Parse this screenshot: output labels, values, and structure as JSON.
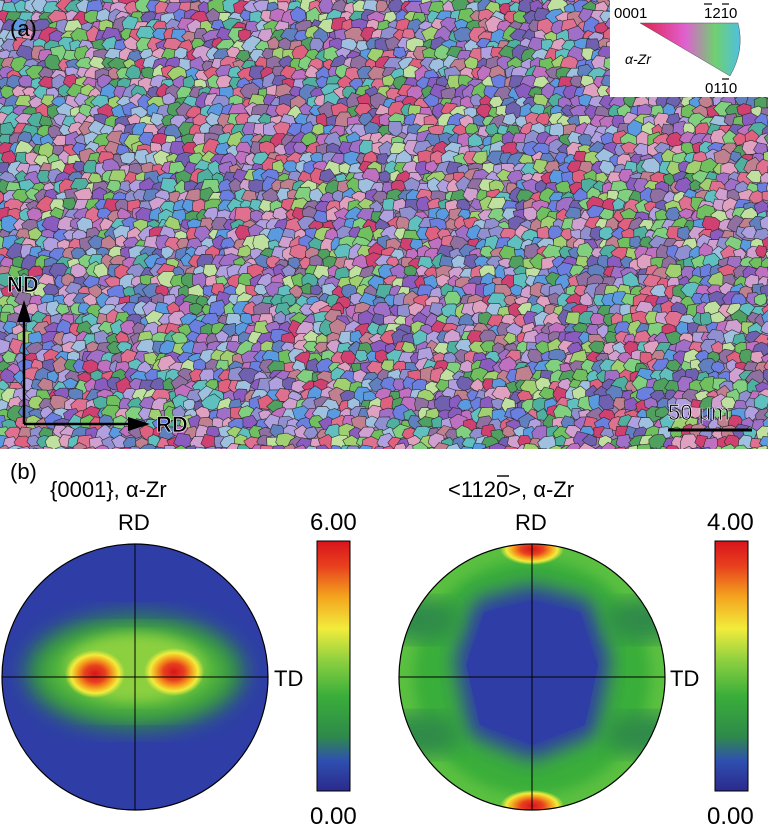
{
  "panel_a": {
    "label": "(a)",
    "legend": {
      "corner_tl": "0001",
      "corner_tr_pre": "1",
      "corner_tr_2": "2",
      "corner_tr_1b": "1",
      "corner_tr_0": "0",
      "phase": "α-Zr",
      "corner_br": "01",
      "corner_br_1": "1",
      "corner_br_0": "0"
    },
    "axes": {
      "vertical": "ND",
      "horizontal": "RD"
    },
    "scale_bar": "50 μm",
    "colors": {
      "boundary": "#2a2a2a"
    }
  },
  "panel_b": {
    "label": "(b)",
    "figures": [
      {
        "title": "{0001}, α-Zr",
        "top_label": "RD",
        "side_label": "TD",
        "colorbar_max": "6.00",
        "colorbar_min": "0.00"
      },
      {
        "title_pre": "<11",
        "title_bar": "2",
        "title_post": "0>, α-Zr",
        "top_label": "RD",
        "side_label": "TD",
        "colorbar_max": "4.00",
        "colorbar_min": "0.00"
      }
    ],
    "colorscale": [
      "#2a2a8c",
      "#2f4fb0",
      "#2f8a4a",
      "#3aae3a",
      "#8cd040",
      "#f2ec3c",
      "#f4a21e",
      "#e8401e",
      "#d8141c"
    ]
  }
}
